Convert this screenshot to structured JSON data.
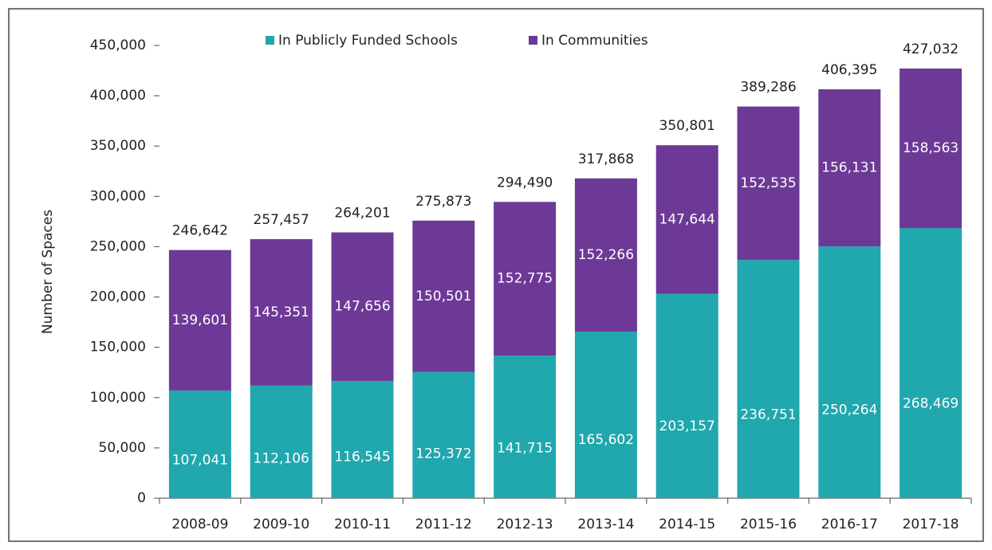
{
  "chart_data": {
    "type": "stacked_bar",
    "y_label": "Number of Spaces",
    "categories": [
      "2008-09",
      "2009-10",
      "2010-11",
      "2011-12",
      "2012-13",
      "2013-14",
      "2014-15",
      "2015-16",
      "2016-17",
      "2017-18"
    ],
    "series": [
      {
        "name": "In Publicly Funded Schools",
        "color": "#21a7ae",
        "values": [
          107041,
          112106,
          116545,
          125372,
          141715,
          165602,
          203157,
          236751,
          250264,
          268469
        ],
        "value_labels": [
          "107,041",
          "112,106",
          "116,545",
          "125,372",
          "141,715",
          "165,602",
          "203,157",
          "236,751",
          "250,264",
          "268,469"
        ]
      },
      {
        "name": "In Communities",
        "color": "#6d3996",
        "values": [
          139601,
          145351,
          147656,
          150501,
          152775,
          152266,
          147644,
          152535,
          156131,
          158563
        ],
        "value_labels": [
          "139,601",
          "145,351",
          "147,656",
          "150,501",
          "152,775",
          "152,266",
          "147,644",
          "152,535",
          "156,131",
          "158,563"
        ]
      }
    ],
    "totals": [
      246642,
      257457,
      264201,
      275873,
      294490,
      317868,
      350801,
      389286,
      406395,
      427032
    ],
    "total_labels": [
      "246,642",
      "257,457",
      "264,201",
      "275,873",
      "294,490",
      "317,868",
      "350,801",
      "389,286",
      "406,395",
      "427,032"
    ],
    "ylim": [
      0,
      450000
    ],
    "yticks": [
      0,
      {
        "value": 50000,
        "label": "50,000"
      },
      {
        "value": 100000,
        "label": "100,000"
      },
      {
        "value": 150000,
        "label": "150,000"
      },
      {
        "value": 200000,
        "label": "200,000"
      },
      {
        "value": 250000,
        "label": "250,000"
      },
      {
        "value": 300000,
        "label": "300,000"
      },
      {
        "value": 350000,
        "label": "350,000"
      },
      {
        "value": 400000,
        "label": "400,000"
      },
      {
        "value": 450000,
        "label": "450,000"
      }
    ],
    "legend": "top"
  }
}
